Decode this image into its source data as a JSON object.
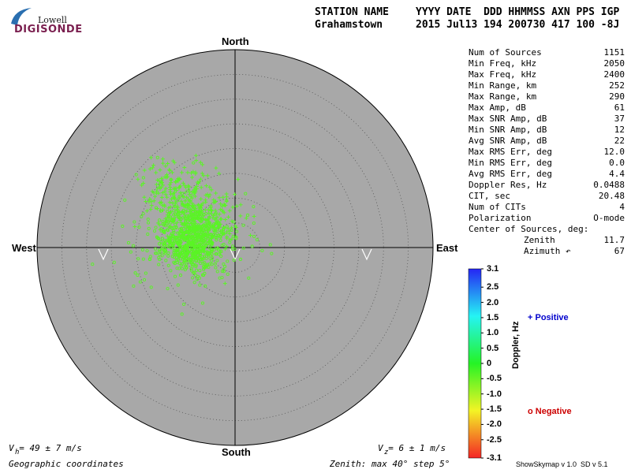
{
  "logo": {
    "line1": "Lowell",
    "line2": "DIGISONDE"
  },
  "header": {
    "label_station": "STATION NAME",
    "label_cols": "YYYY DATE  DDD HHMMSS AXN PPS IGP",
    "station": "Grahamstown",
    "values": "2015 Jul13 194 200730 417 100 -8J"
  },
  "directions": {
    "north": "North",
    "south": "South",
    "west": "West",
    "east": "East"
  },
  "stats": [
    {
      "label": "Num of Sources",
      "value": "1151"
    },
    {
      "label": "Min Freq, kHz",
      "value": "2050"
    },
    {
      "label": "Max Freq, kHz",
      "value": "2400"
    },
    {
      "label": "Min Range, km",
      "value": "252"
    },
    {
      "label": "Max Range, km",
      "value": "290"
    },
    {
      "label": "Max Amp, dB",
      "value": "61"
    },
    {
      "label": "Max SNR Amp, dB",
      "value": "37"
    },
    {
      "label": "Min SNR Amp, dB",
      "value": "12"
    },
    {
      "label": "Avg SNR Amp, dB",
      "value": "22"
    },
    {
      "label": "Max RMS Err, deg",
      "value": "12.0"
    },
    {
      "label": "Min RMS Err, deg",
      "value": "0.0"
    },
    {
      "label": "Avg RMS Err, deg",
      "value": "4.4"
    },
    {
      "label": "Doppler Res, Hz",
      "value": "0.0488"
    },
    {
      "label": "CIT, sec",
      "value": "20.48"
    },
    {
      "label": "Num of CITs",
      "value": "4"
    },
    {
      "label": "Polarization",
      "value": "O-mode"
    },
    {
      "label": "Center of Sources, deg:",
      "value": ""
    },
    {
      "label": "Zenith",
      "value": "11.7",
      "indent": true
    },
    {
      "label": "Azimuth ↶",
      "value": "67",
      "indent": true
    }
  ],
  "colorbar": {
    "ticks": [
      "3.1",
      "2.5",
      "2.0",
      "1.5",
      "1.0",
      "0.5",
      "0",
      "-0.5",
      "-1.0",
      "-1.5",
      "-2.0",
      "-2.5",
      "-3.1"
    ],
    "label": "Doppler, Hz",
    "min": -3.1,
    "max": 3.1
  },
  "legend": {
    "positive": "+ Positive",
    "negative": "o Negative",
    "positive_color": "#0000cc",
    "negative_color": "#cc0000"
  },
  "footer": {
    "vh": "V  = 49 ± 7 m/s",
    "vh_sub": "h",
    "vz": "V  = 6 ± 1 m/s",
    "vz_sub": "z",
    "coords": "Geographic coordinates",
    "zenith": "Zenith: max 40°  step 5°",
    "version": "ShowSkymap v 1.0  SD v 5.1"
  },
  "chart_data": {
    "type": "scatter",
    "title": "",
    "coordinate_system": "polar sky map (zenith angle vs azimuth)",
    "zenith_max_deg": 40,
    "zenith_step_deg": 5,
    "grid": true,
    "background": "#a8a8a8",
    "series": [
      {
        "name": "Positive",
        "marker": "+",
        "cluster_center_deg": {
          "west": 13,
          "north": 13
        },
        "approx_count": 450
      },
      {
        "name": "Negative",
        "marker": "o",
        "cluster_center_deg": {
          "west": 8,
          "north": 0
        },
        "approx_count": 700
      }
    ],
    "doppler_color_value_hz": -0.4,
    "center_of_sources": {
      "zenith_deg": 11.7,
      "azimuth_deg": 67
    }
  }
}
